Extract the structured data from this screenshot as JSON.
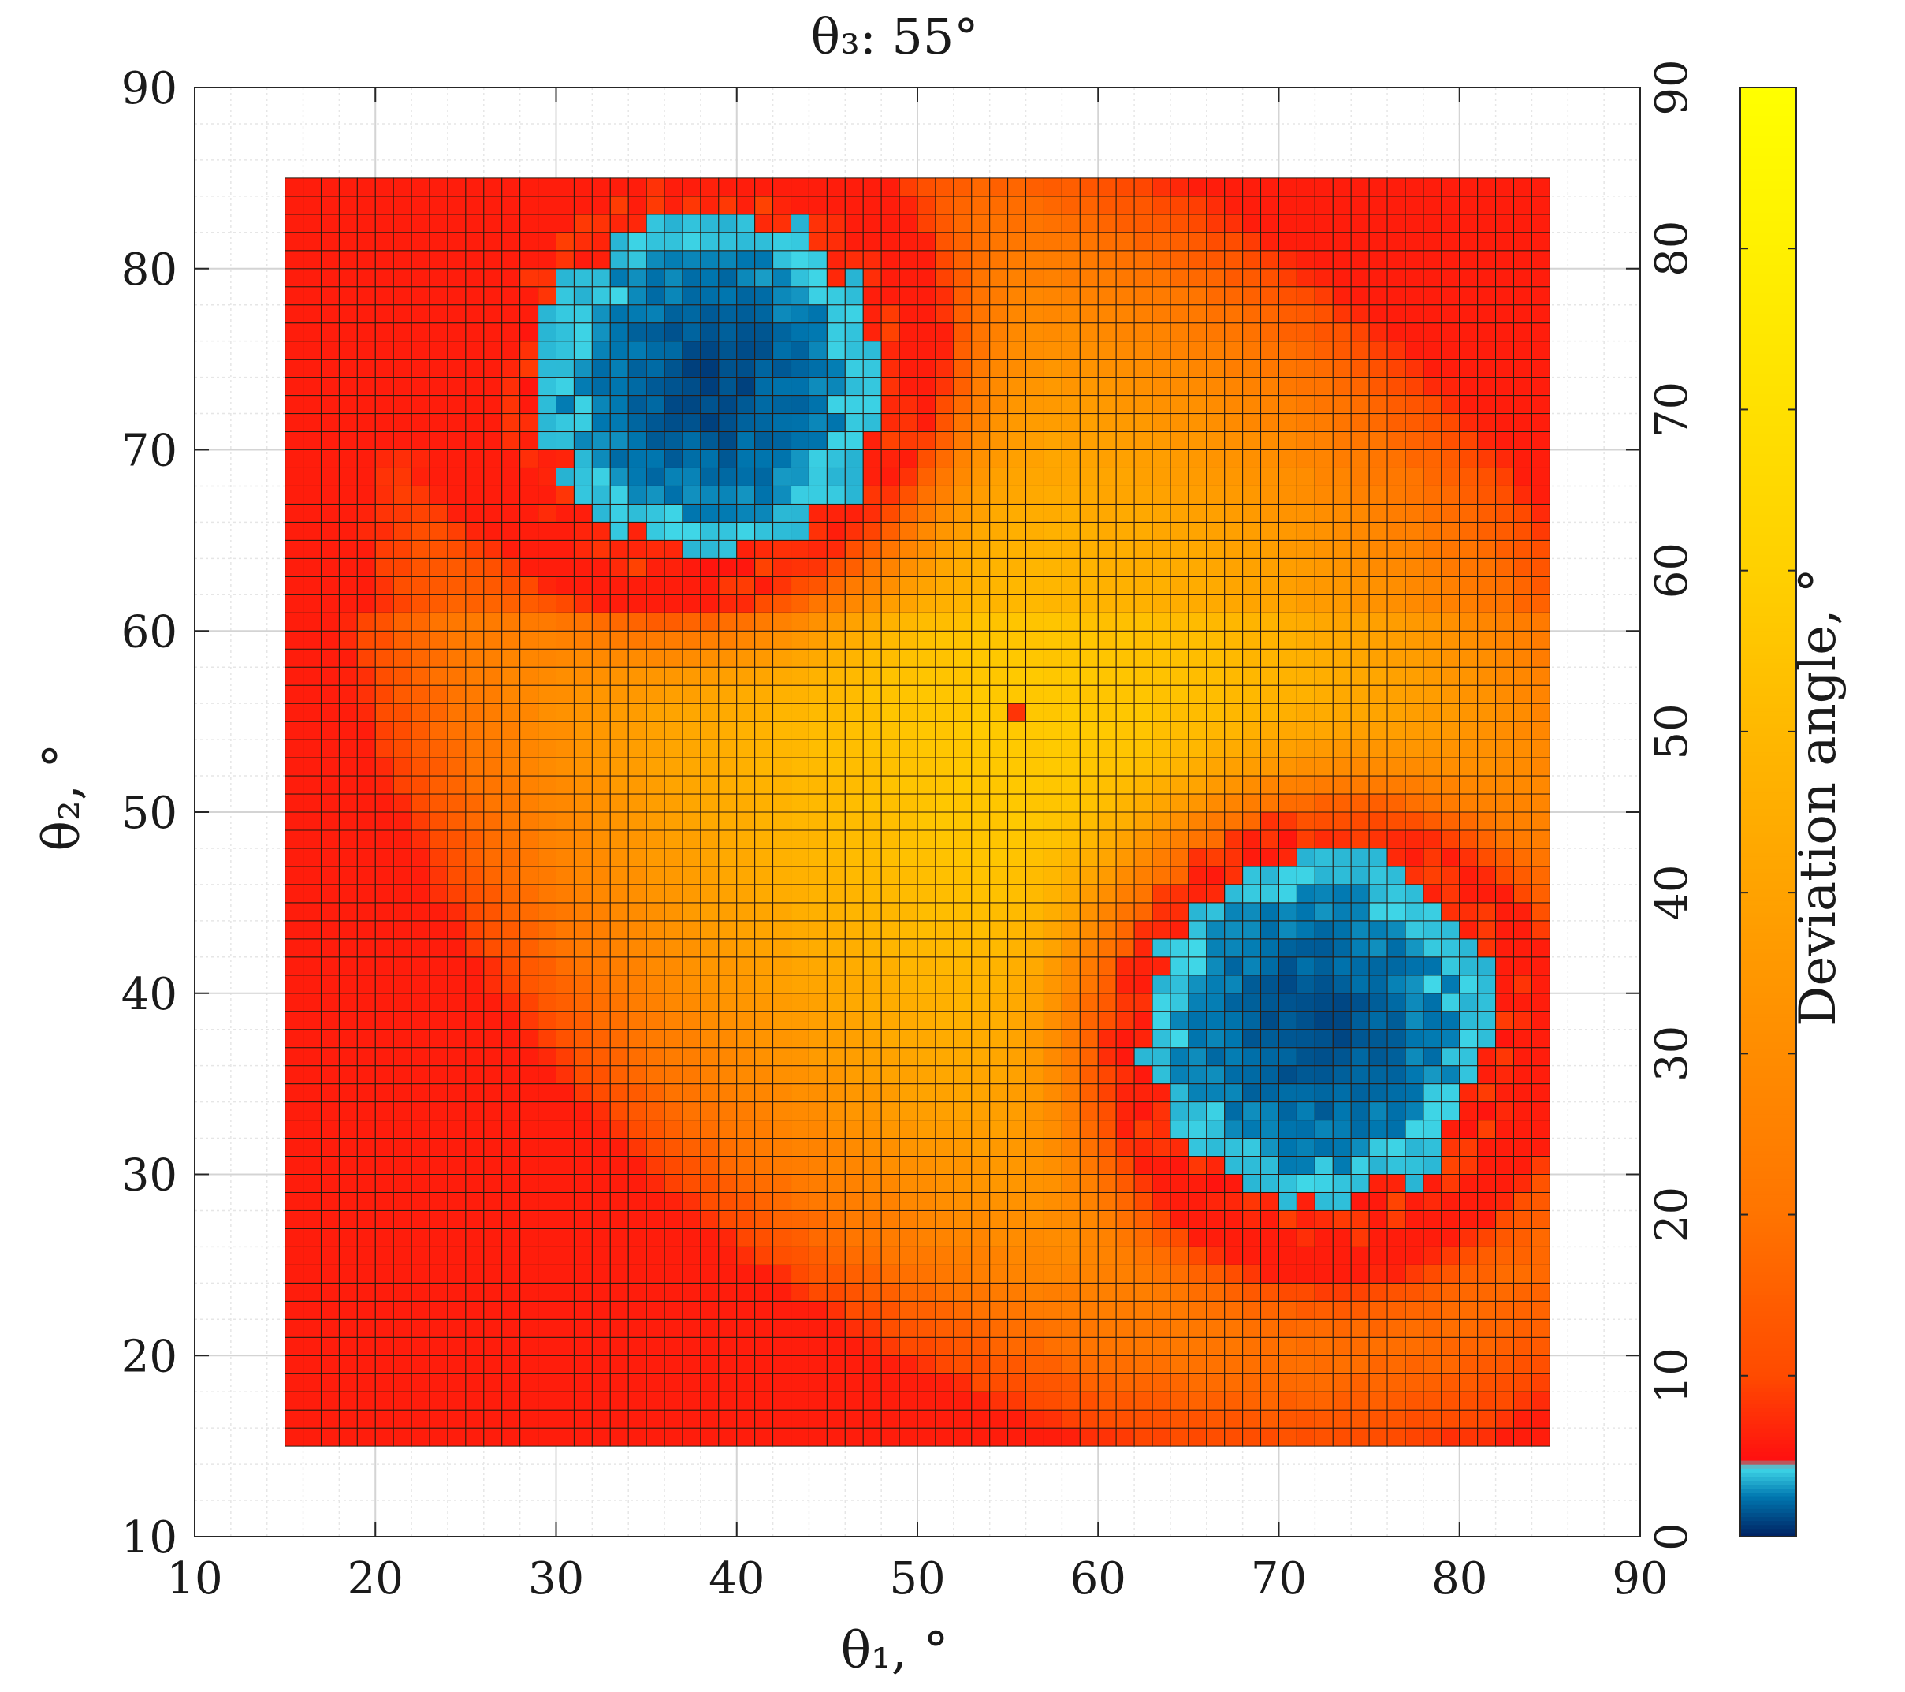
{
  "chart_data": {
    "type": "heatmap",
    "title": "θ₃: 55°",
    "xlabel": "θ₁, °",
    "ylabel": "θ₂, °",
    "colorbar_label": "Deviation angle, °",
    "xlim": [
      10,
      90
    ],
    "ylim": [
      10,
      90
    ],
    "xticks": [
      "10",
      "20",
      "30",
      "40",
      "50",
      "60",
      "70",
      "80",
      "90"
    ],
    "yticks": [
      "10",
      "20",
      "30",
      "40",
      "50",
      "60",
      "70",
      "80",
      "90"
    ],
    "colorbar_ticks": [
      "0",
      "10",
      "20",
      "30",
      "40",
      "50",
      "60",
      "70",
      "80",
      "90"
    ],
    "colorbar_range": [
      0,
      90
    ],
    "grid": true,
    "minor_grid": true,
    "data_range_x": [
      15,
      85
    ],
    "data_range_y": [
      15,
      85
    ],
    "cell_step": 1,
    "regions": [
      {
        "region": "low-deviation island",
        "center_x": 38.5,
        "center_y": 73.5,
        "x_range": [
          27,
          49
        ],
        "y_range": [
          62,
          85
        ],
        "approx_value": 2
      },
      {
        "region": "low-deviation island",
        "center_x": 72,
        "center_y": 38,
        "x_range": [
          63,
          84
        ],
        "y_range": [
          27,
          48
        ],
        "approx_value": 2
      },
      {
        "region": "peak",
        "center_x": 57,
        "center_y": 53,
        "approx_value": 57
      },
      {
        "region": "single outlier cell",
        "center_x": 55.5,
        "center_y": 55.5,
        "approx_value": 8
      }
    ],
    "colormap": [
      {
        "value": 0,
        "color": "#002060"
      },
      {
        "value": 2.5,
        "color": "#0077b0"
      },
      {
        "value": 4.3,
        "color": "#40d8e8"
      },
      {
        "value": 4.8,
        "color": "#ff1010"
      },
      {
        "value": 10,
        "color": "#ff4a00"
      },
      {
        "value": 20,
        "color": "#ff7400"
      },
      {
        "value": 30,
        "color": "#ff8c00"
      },
      {
        "value": 40,
        "color": "#ffa200"
      },
      {
        "value": 50,
        "color": "#ffb800"
      },
      {
        "value": 60,
        "color": "#ffd000"
      },
      {
        "value": 70,
        "color": "#ffe000"
      },
      {
        "value": 80,
        "color": "#fff000"
      },
      {
        "value": 90,
        "color": "#ffff00"
      }
    ]
  }
}
